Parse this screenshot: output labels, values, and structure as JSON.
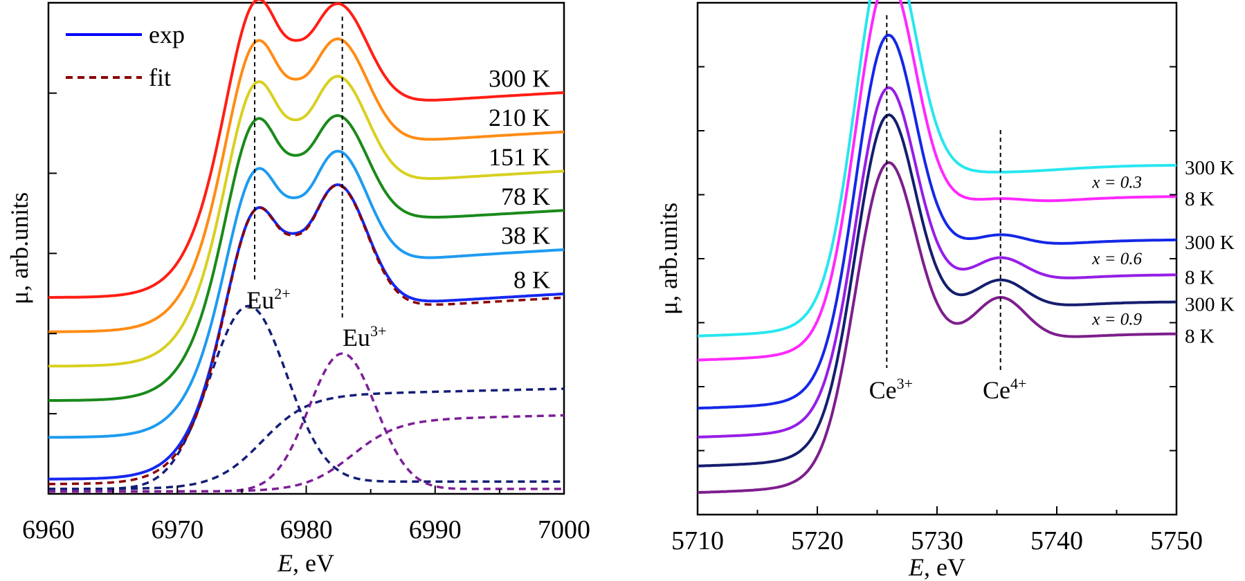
{
  "chart_data": [
    {
      "type": "line",
      "title": "",
      "xlabel_var": "E",
      "xlabel_unit": ", eV",
      "ylabel": "μ, arb.units",
      "xlim": [
        6960,
        7000
      ],
      "ylim": [
        0,
        1
      ],
      "x_ticks": [
        "6960",
        "6970",
        "6980",
        "6990",
        "7000"
      ],
      "legend": [
        {
          "name": "exp",
          "color": "#0000ff",
          "style": "solid"
        },
        {
          "name": "fit",
          "color": "#8b0000",
          "style": "dashed"
        }
      ],
      "series": [
        {
          "name": "300 K",
          "color": "#ff1e14",
          "baseline": 0.4,
          "peak1": 1.04,
          "peak2": 1.015,
          "valley": 0.92,
          "tail": 0.81
        },
        {
          "name": "210 K",
          "color": "#ff8c14",
          "baseline": 0.33,
          "peak1": 0.955,
          "peak2": 0.945,
          "valley": 0.84,
          "tail": 0.73
        },
        {
          "name": "151 K",
          "color": "#d8d020",
          "baseline": 0.26,
          "peak1": 0.87,
          "peak2": 0.87,
          "valley": 0.755,
          "tail": 0.65
        },
        {
          "name": "78 K",
          "color": "#1a8a1a",
          "baseline": 0.19,
          "peak1": 0.795,
          "peak2": 0.79,
          "valley": 0.685,
          "tail": 0.57
        },
        {
          "name": "38 K",
          "color": "#1e9bf0",
          "baseline": 0.115,
          "peak1": 0.69,
          "peak2": 0.72,
          "valley": 0.6,
          "tail": 0.49
        },
        {
          "name": "8 K",
          "color": "#1428f0",
          "baseline": 0.03,
          "peak1": 0.61,
          "peak2": 0.655,
          "valley": 0.53,
          "tail": 0.4
        }
      ],
      "fit": {
        "name": "fit",
        "color": "#8b0000",
        "baseline": 0.02,
        "peak1": 0.61,
        "peak2": 0.655,
        "valley": 0.525,
        "tail": 0.395
      },
      "components": [
        {
          "name": "Eu2+ peak",
          "color": "#141e78",
          "type": "gauss",
          "center": 6975.5,
          "amp": 0.37,
          "width": 3.0,
          "base": 0.01,
          "tail": 0.015
        },
        {
          "name": "Eu2+ step",
          "color": "#141e78",
          "type": "step",
          "center": 6976.5,
          "height": 0.19,
          "width": 1.8,
          "base": 0.01
        },
        {
          "name": "Eu3+ peak",
          "color": "#7d1e96",
          "type": "gauss",
          "center": 6982.8,
          "amp": 0.28,
          "width": 2.6,
          "base": 0.005,
          "tail": 0.005
        },
        {
          "name": "Eu3+ step",
          "color": "#7d1e96",
          "type": "step",
          "center": 6983.5,
          "height": 0.145,
          "width": 1.8,
          "base": 0.005
        }
      ],
      "vlines": [
        {
          "x": 6976,
          "label": "Eu",
          "sup": "2+"
        },
        {
          "x": 6982.8,
          "label": "Eu",
          "sup": "3+"
        }
      ]
    },
    {
      "type": "line",
      "title": "",
      "xlabel_var": "E",
      "xlabel_unit": ", eV",
      "ylabel": "μ, arb.units",
      "xlim": [
        5710,
        5750
      ],
      "ylim": [
        0,
        1
      ],
      "x_ticks": [
        "5710",
        "5720",
        "5730",
        "5740",
        "5750"
      ],
      "series": [
        {
          "name": "300 K",
          "group": "x = 0.3",
          "color": "#28e6f0",
          "baseline": 0.345,
          "peak": 1.0,
          "shoulder": 0.0,
          "tail": 0.6
        },
        {
          "name": "8 K",
          "group": "x = 0.3",
          "color": "#ff28ff",
          "baseline": 0.295,
          "peak": 0.935,
          "shoulder": 0.01,
          "tail": 0.535
        },
        {
          "name": "300 K",
          "group": "x = 0.6",
          "color": "#1428e6",
          "baseline": 0.195,
          "peak": 0.8,
          "shoulder": 0.025,
          "tail": 0.46
        },
        {
          "name": "8 K",
          "group": "x = 0.6",
          "color": "#961ee6",
          "baseline": 0.135,
          "peak": 0.69,
          "shoulder": 0.05,
          "tail": 0.4
        },
        {
          "name": "300 K",
          "group": "x = 0.9",
          "color": "#141e6e",
          "baseline": 0.075,
          "peak": 0.63,
          "shoulder": 0.06,
          "tail": 0.345
        },
        {
          "name": "8 K",
          "group": "x = 0.9",
          "color": "#7d1e8c",
          "baseline": 0.02,
          "peak": 0.53,
          "shoulder": 0.09,
          "tail": 0.29
        }
      ],
      "group_labels": [
        "x = 0.3",
        "x = 0.6",
        "x = 0.9"
      ],
      "vlines": [
        {
          "x": 5725.8,
          "label": "Ce",
          "sup": "3+"
        },
        {
          "x": 5735.3,
          "label": "Ce",
          "sup": "4+"
        }
      ]
    }
  ]
}
